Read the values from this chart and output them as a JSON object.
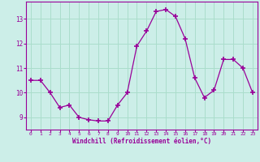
{
  "x": [
    0,
    1,
    2,
    3,
    4,
    5,
    6,
    7,
    8,
    9,
    10,
    11,
    12,
    13,
    14,
    15,
    16,
    17,
    18,
    19,
    20,
    21,
    22,
    23
  ],
  "y": [
    10.5,
    10.5,
    10.0,
    9.4,
    9.5,
    9.0,
    8.9,
    8.85,
    8.85,
    9.5,
    10.0,
    11.9,
    12.5,
    13.3,
    13.38,
    13.1,
    12.2,
    10.6,
    9.8,
    10.1,
    11.35,
    11.35,
    11.0,
    10.0
  ],
  "line_color": "#990099",
  "marker_color": "#990099",
  "bg_color": "#cceee8",
  "grid_color": "#aaddcc",
  "xlabel": "Windchill (Refroidissement éolien,°C)",
  "xlabel_color": "#990099",
  "tick_color": "#990099",
  "ylim": [
    8.5,
    13.7
  ],
  "yticks": [
    9,
    10,
    11,
    12,
    13
  ],
  "xticks": [
    0,
    1,
    2,
    3,
    4,
    5,
    6,
    7,
    8,
    9,
    10,
    11,
    12,
    13,
    14,
    15,
    16,
    17,
    18,
    19,
    20,
    21,
    22,
    23
  ]
}
